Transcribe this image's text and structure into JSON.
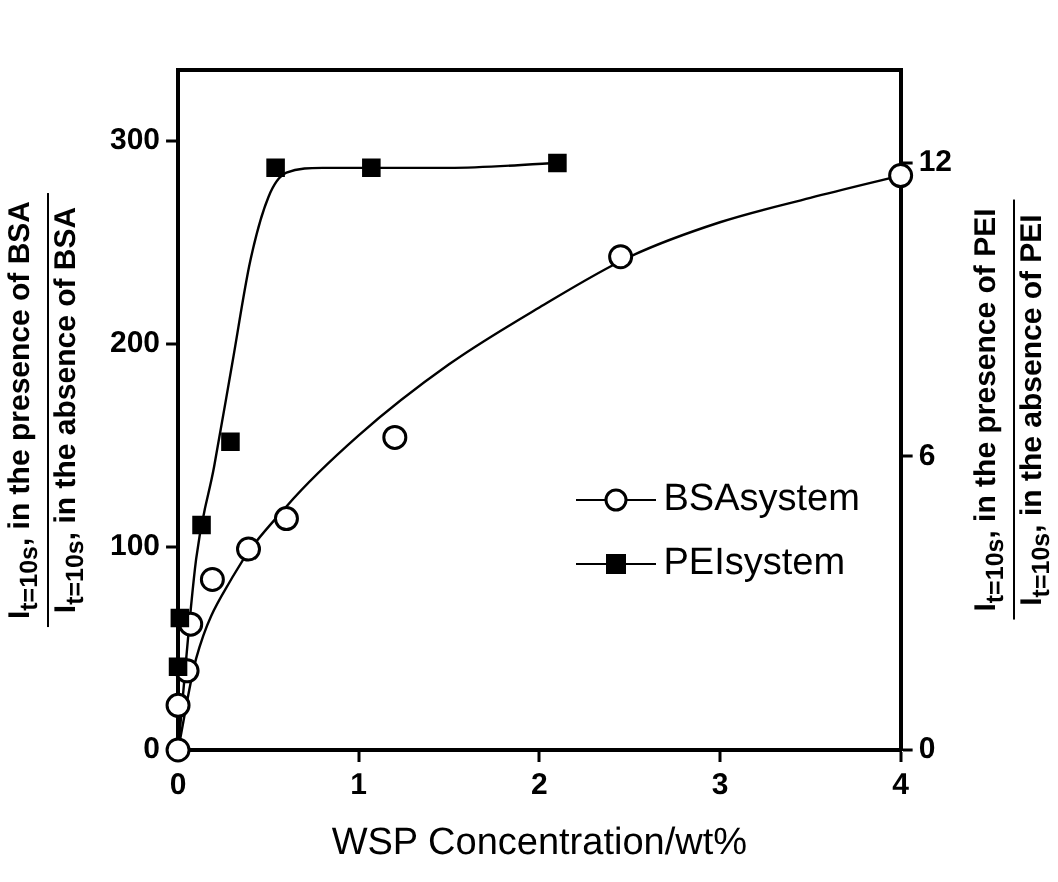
{
  "chart_data": {
    "type": "scatter",
    "xlabel": "WSP Concentration/wt%",
    "ylabel": "I$_{t=10s}$, in the presence of BSA\nI$_{t=10s}$, in the absence of BSA",
    "y2label": "I$_{t=10s}$, in the presence of PEI\nI$_{t=10s}$, in the absence of PEI",
    "xlim": [
      0,
      4
    ],
    "xticks": [
      0,
      1,
      2,
      3,
      4
    ],
    "ylim": [
      0,
      335
    ],
    "yticks": [
      0,
      100,
      200,
      300
    ],
    "y2lim": [
      0,
      13.9
    ],
    "y2ticks": [
      0,
      6,
      12
    ],
    "grid": false,
    "legend": "right",
    "series": [
      {
        "name": "BSAsystem",
        "type": "scatter",
        "marker": "circle",
        "color": "#000000",
        "axis": "y",
        "x": [
          0,
          0,
          0.05,
          0.07,
          0.19,
          0.39,
          0.6,
          1.2,
          2.45,
          4
        ],
        "values": [
          0,
          22,
          39,
          62,
          84,
          99,
          114,
          154,
          243,
          283
        ]
      },
      {
        "name": "PEIsystem",
        "type": "scatter",
        "marker": "square",
        "color": "#000000",
        "axis": "y2",
        "x": [
          0,
          0.01,
          0.13,
          0.29,
          0.54,
          1.07,
          2.1
        ],
        "values": [
          1.7,
          2.7,
          4.6,
          6.3,
          11.9,
          11.9,
          12.0
        ]
      },
      {
        "type": "line",
        "marker": "none",
        "color": "#000000",
        "axis": "y",
        "x": [
          0,
          0.1,
          0.3,
          0.6,
          1,
          1.5,
          2,
          2.5,
          3,
          3.5,
          4
        ],
        "values": [
          0,
          45,
          85,
          120,
          155,
          190,
          218,
          243,
          260,
          272,
          283
        ]
      },
      {
        "type": "line",
        "marker": "none",
        "color": "#000000",
        "axis": "y2",
        "x": [
          0,
          0.1,
          0.2,
          0.3,
          0.4,
          0.5,
          0.6,
          0.8,
          1.5,
          2.1
        ],
        "values": [
          0,
          3.9,
          5.8,
          7.9,
          10.0,
          11.3,
          11.8,
          11.9,
          11.9,
          12.0
        ]
      }
    ]
  }
}
